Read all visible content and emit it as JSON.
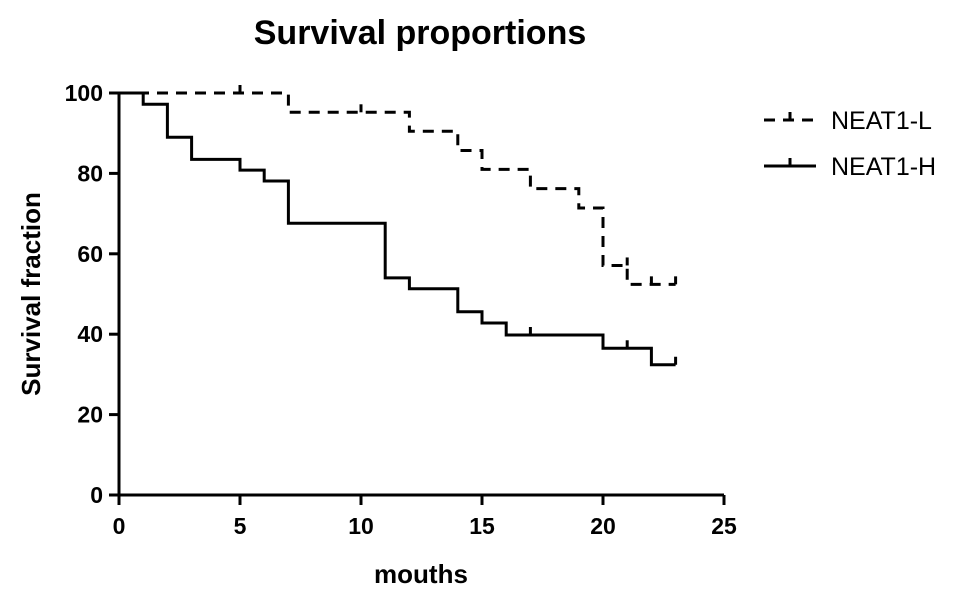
{
  "chart_data": {
    "type": "line",
    "title": "Survival proportions",
    "xlabel": "mouths",
    "ylabel": "Survival fraction",
    "xlim": [
      0,
      25
    ],
    "ylim": [
      0,
      100
    ],
    "x_ticks": [
      0,
      5,
      10,
      15,
      20,
      25
    ],
    "y_ticks": [
      0,
      20,
      40,
      60,
      80,
      100
    ],
    "grid": false,
    "legend_position": "top-right",
    "series": [
      {
        "name": "NEAT1-L",
        "style": "dashed",
        "color": "#000000",
        "steps": [
          {
            "x": 0,
            "y": 100
          },
          {
            "x": 7,
            "y": 95.2
          },
          {
            "x": 12,
            "y": 90.5
          },
          {
            "x": 14,
            "y": 85.7
          },
          {
            "x": 15,
            "y": 81
          },
          {
            "x": 17,
            "y": 76.2
          },
          {
            "x": 19,
            "y": 71.4
          },
          {
            "x": 20,
            "y": 57.1
          },
          {
            "x": 21,
            "y": 52.4
          },
          {
            "x": 23,
            "y": 52.4
          }
        ],
        "censored": [
          {
            "x": 5,
            "y": 100
          },
          {
            "x": 10,
            "y": 95.2
          },
          {
            "x": 21,
            "y": 57.1
          },
          {
            "x": 22,
            "y": 52.4
          },
          {
            "x": 23,
            "y": 52.4
          }
        ]
      },
      {
        "name": "NEAT1-H",
        "style": "solid",
        "color": "#000000",
        "steps": [
          {
            "x": 0,
            "y": 100
          },
          {
            "x": 1,
            "y": 97.2
          },
          {
            "x": 2,
            "y": 89
          },
          {
            "x": 3,
            "y": 83.5
          },
          {
            "x": 5,
            "y": 80.8
          },
          {
            "x": 6,
            "y": 78.1
          },
          {
            "x": 7,
            "y": 67.6
          },
          {
            "x": 11,
            "y": 54
          },
          {
            "x": 12,
            "y": 51.3
          },
          {
            "x": 14,
            "y": 45.6
          },
          {
            "x": 15,
            "y": 42.8
          },
          {
            "x": 16,
            "y": 39.8
          },
          {
            "x": 20,
            "y": 36.5
          },
          {
            "x": 22,
            "y": 32.4
          },
          {
            "x": 23,
            "y": 32.4
          }
        ],
        "censored": [
          {
            "x": 17,
            "y": 39.8
          },
          {
            "x": 21,
            "y": 36.5
          },
          {
            "x": 23,
            "y": 32.4
          }
        ]
      }
    ]
  }
}
